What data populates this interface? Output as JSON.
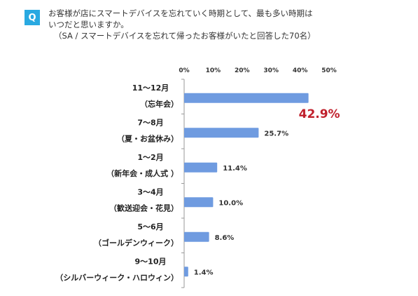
{
  "question": {
    "badge": "Q",
    "line1": "お客様が店にスマートデバイスを忘れていく時期として、最も多い時期は",
    "line2": "いつだと思いますか。",
    "note": "（SA / スマートデバイスを忘れて帰ったお客様がいたと回答した70名）"
  },
  "colors": {
    "accent": "#29a9e1",
    "bar": "#6f9be0",
    "highlight": "#c0202c"
  },
  "chart_data": {
    "type": "bar",
    "orientation": "horizontal",
    "xlim": [
      0,
      50
    ],
    "ticks": [
      "0%",
      "10%",
      "20%",
      "30%",
      "40%",
      "50%"
    ],
    "tick_values": [
      0,
      10,
      20,
      30,
      40,
      50
    ],
    "categories": [
      {
        "line1": "11～12月",
        "line2": "（忘年会）"
      },
      {
        "line1": "7～8月",
        "line2": "（夏・お盆休み）"
      },
      {
        "line1": "1～2月",
        "line2": "（新年会・成人式 ）"
      },
      {
        "line1": "3～4月",
        "line2": "（歓送迎会・花見）"
      },
      {
        "line1": "5～6月",
        "line2": "（ゴールデンウィーク）"
      },
      {
        "line1": "9～10月",
        "line2": "（シルバーウィーク・ハロウィン）"
      }
    ],
    "values": [
      42.9,
      25.7,
      11.4,
      10.0,
      8.6,
      1.4
    ],
    "labels": [
      "42.9%",
      "25.7%",
      "11.4%",
      "10.0%",
      "8.6%",
      "1.4%"
    ],
    "highlight_index": 0,
    "grid": false
  }
}
